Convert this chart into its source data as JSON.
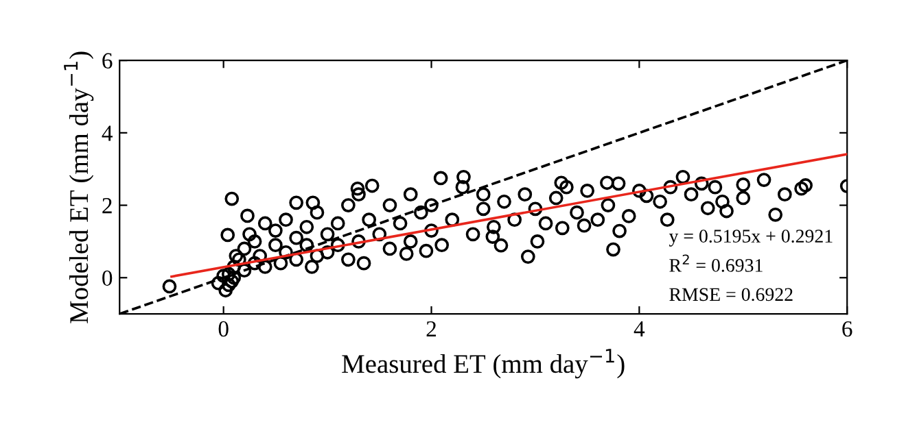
{
  "chart_data": {
    "type": "scatter",
    "xlabel": "Measured ET (mm day$^{−1}$)",
    "ylabel": "Modeled ET (mm day$^{−1}$)",
    "xlim": [
      -1,
      6
    ],
    "xticks": [
      0,
      2,
      4,
      6
    ],
    "ylim": [
      -1,
      6
    ],
    "yticks": [
      0,
      2,
      4,
      6
    ],
    "grid": false,
    "legend": false,
    "annotations": [
      "y = 0.5195x + 0.2921",
      "R$^{2}$ = 0.6931",
      "RMSE = 0.6922"
    ],
    "series": [
      {
        "color": "#000000",
        "marker": "circle",
        "x": [
          -0.52,
          0.08,
          0.04,
          0.23,
          2.93,
          3.75,
          6.0,
          4.27,
          4.66,
          5.31,
          5.56,
          4.42,
          5.0,
          4.73,
          4.84,
          4.07,
          3.69,
          3.25,
          3.02,
          3.26,
          3.47,
          3.81,
          2.67,
          2.59,
          2.31,
          2.09,
          1.95,
          1.76,
          1.43,
          1.29,
          0.86,
          0.7,
          0.02,
          0.05,
          0.1,
          0.1,
          0.15,
          0.2,
          0.2,
          0.25,
          0.3,
          0.3,
          0.35,
          0.4,
          0.4,
          0.5,
          0.5,
          0.55,
          0.6,
          0.6,
          0.7,
          0.7,
          0.8,
          0.8,
          0.85,
          0.9,
          0.9,
          1.0,
          1.0,
          1.1,
          1.1,
          1.2,
          1.2,
          1.3,
          1.3,
          1.35,
          1.4,
          1.5,
          1.6,
          1.6,
          1.7,
          1.8,
          1.8,
          1.9,
          2.0,
          2.0,
          2.1,
          2.2,
          2.3,
          2.4,
          2.5,
          2.5,
          2.6,
          2.7,
          2.8,
          2.9,
          3.0,
          3.1,
          3.2,
          3.3,
          3.4,
          3.5,
          3.6,
          3.7,
          3.8,
          3.9,
          4.0,
          4.2,
          4.3,
          4.5,
          4.6,
          4.8,
          5.0,
          5.2,
          5.4,
          5.6,
          0.05,
          0.08,
          0.12,
          0.0,
          -0.05
        ],
        "values": [
          -0.24,
          2.18,
          1.18,
          1.71,
          0.58,
          0.78,
          2.53,
          1.6,
          1.92,
          1.74,
          2.46,
          2.78,
          2.57,
          2.5,
          1.84,
          2.26,
          2.62,
          2.62,
          1.0,
          1.37,
          1.44,
          1.29,
          0.89,
          1.13,
          2.78,
          2.75,
          0.74,
          0.66,
          2.54,
          2.46,
          2.07,
          2.07,
          -0.35,
          -0.2,
          0.0,
          0.3,
          0.5,
          0.2,
          0.8,
          1.2,
          0.4,
          1.0,
          0.6,
          1.5,
          0.3,
          0.9,
          1.3,
          0.4,
          1.6,
          0.7,
          1.1,
          0.5,
          1.4,
          0.9,
          0.3,
          1.8,
          0.6,
          1.2,
          0.7,
          1.5,
          0.9,
          2.0,
          0.5,
          1.0,
          2.3,
          0.4,
          1.6,
          1.2,
          2.0,
          0.8,
          1.5,
          2.3,
          1.0,
          1.8,
          1.3,
          2.0,
          0.9,
          1.6,
          2.5,
          1.2,
          1.9,
          2.3,
          1.4,
          2.1,
          1.6,
          2.3,
          1.9,
          1.5,
          2.2,
          2.5,
          1.8,
          2.4,
          1.6,
          2.0,
          2.6,
          1.7,
          2.4,
          2.1,
          2.5,
          2.3,
          2.6,
          2.1,
          2.2,
          2.7,
          2.3,
          2.55,
          0.1,
          -0.1,
          0.6,
          0.05,
          -0.15
        ]
      },
      {
        "type": "line",
        "color": "#000000",
        "line_style": "dashed",
        "marker": "none",
        "x": [
          -1,
          6
        ],
        "values": [
          -1,
          6
        ]
      },
      {
        "type": "line",
        "color": "#e8261c",
        "line_style": "solid",
        "marker": "none",
        "x": [
          -0.5,
          6
        ],
        "values": [
          0.03,
          3.41
        ]
      }
    ]
  }
}
